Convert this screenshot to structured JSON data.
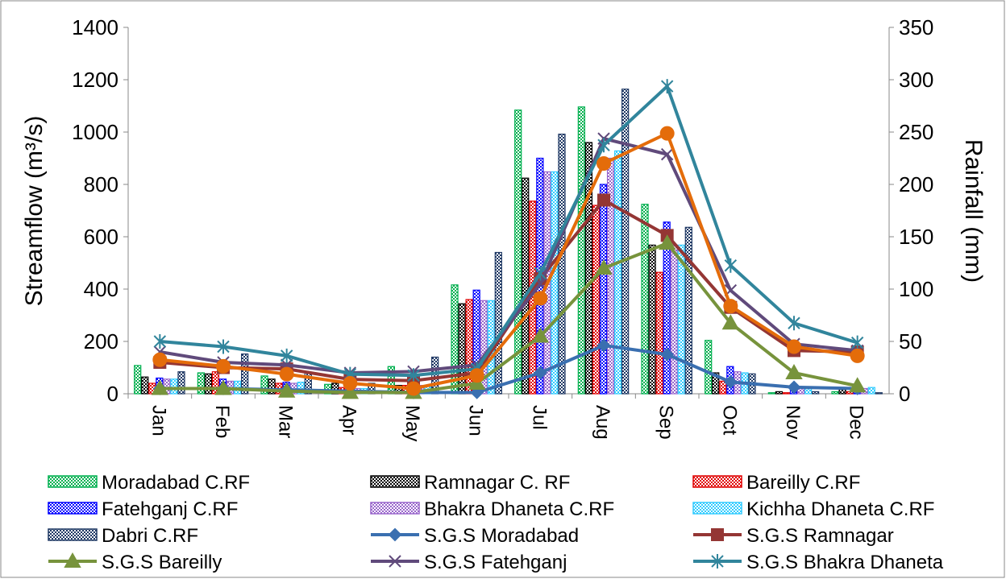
{
  "chart_data": {
    "type": "bar-line",
    "ylabel": "Streamflow (m³/s)",
    "y2label": "Rainfall (mm)",
    "categories": [
      "Jan",
      "Feb",
      "Mar",
      "Apr",
      "May",
      "Jun",
      "Jul",
      "Aug",
      "Sep",
      "Oct",
      "Nov",
      "Dec"
    ],
    "ylim": [
      0,
      1400
    ],
    "yticks": [
      0,
      200,
      400,
      600,
      800,
      1000,
      1200,
      1400
    ],
    "y2lim": [
      0,
      350
    ],
    "y2ticks": [
      0,
      50,
      100,
      150,
      200,
      250,
      300,
      350
    ],
    "series": [
      {
        "name": "Moradabad C.RF",
        "kind": "bar",
        "axis": "y2",
        "color": "#00b050",
        "values": [
          27,
          20,
          17,
          9,
          26,
          104,
          271,
          274,
          181,
          51,
          1,
          2
        ]
      },
      {
        "name": "Ramnagar C. RF",
        "kind": "bar",
        "axis": "y2",
        "color": "#000000",
        "values": [
          16,
          19,
          14,
          10,
          8,
          86,
          206,
          240,
          142,
          20,
          2,
          4
        ]
      },
      {
        "name": "Bareilly C.RF",
        "kind": "bar",
        "axis": "y2",
        "color": "#e00000",
        "values": [
          10,
          21,
          10,
          6,
          8,
          90,
          184,
          180,
          116,
          12,
          1,
          2
        ]
      },
      {
        "name": "Fatehganj C.RF",
        "kind": "bar",
        "axis": "y2",
        "color": "#0000ff",
        "values": [
          15,
          14,
          11,
          5,
          8,
          99,
          225,
          200,
          164,
          26,
          4,
          6
        ]
      },
      {
        "name": "Bhakra Dhaneta C.RF",
        "kind": "bar",
        "axis": "y2",
        "color": "#9966cc",
        "values": [
          14,
          12,
          10,
          5,
          8,
          89,
          212,
          225,
          142,
          21,
          5,
          5
        ]
      },
      {
        "name": " Kichha Dhaneta C.RF",
        "kind": "bar",
        "axis": "y2",
        "color": "#33ccff",
        "values": [
          14,
          12,
          11,
          5,
          8,
          89,
          212,
          232,
          142,
          20,
          5,
          6
        ]
      },
      {
        "name": "Dabri C.RF",
        "kind": "bar",
        "axis": "y2",
        "color": "#1f3864",
        "values": [
          21,
          38,
          20,
          10,
          35,
          135,
          248,
          291,
          159,
          19,
          2,
          1
        ]
      },
      {
        "name": "S.G.S Moradabad",
        "kind": "line",
        "marker": "diamond",
        "color": "#3a6fb0",
        "values": [
          20,
          20,
          15,
          10,
          5,
          5,
          80,
          185,
          150,
          45,
          25,
          20
        ]
      },
      {
        "name": "S.G.S Ramnagar",
        "kind": "line",
        "marker": "square",
        "color": "#943634",
        "values": [
          120,
          100,
          95,
          55,
          50,
          80,
          440,
          740,
          605,
          330,
          165,
          160
        ]
      },
      {
        "name": "S.G.S Bareilly",
        "kind": "line",
        "marker": "triangle",
        "color": "#77933c",
        "values": [
          20,
          20,
          10,
          5,
          5,
          40,
          220,
          480,
          575,
          270,
          80,
          30
        ]
      },
      {
        "name": "S.G.S Fatehganj",
        "kind": "line",
        "marker": "x",
        "color": "#604a7b",
        "values": [
          160,
          120,
          110,
          80,
          85,
          110,
          420,
          975,
          915,
          395,
          190,
          165
        ]
      },
      {
        "name": "S.G.S Bhakra Dhaneta",
        "kind": "line",
        "marker": "star",
        "color": "#31859c",
        "values": [
          200,
          180,
          145,
          75,
          70,
          95,
          460,
          950,
          1175,
          490,
          270,
          195
        ]
      },
      {
        "name": null,
        "kind": "line",
        "marker": "circle",
        "color": "#e46c0a",
        "values": [
          130,
          105,
          75,
          40,
          20,
          70,
          365,
          880,
          995,
          335,
          180,
          145
        ]
      }
    ]
  }
}
